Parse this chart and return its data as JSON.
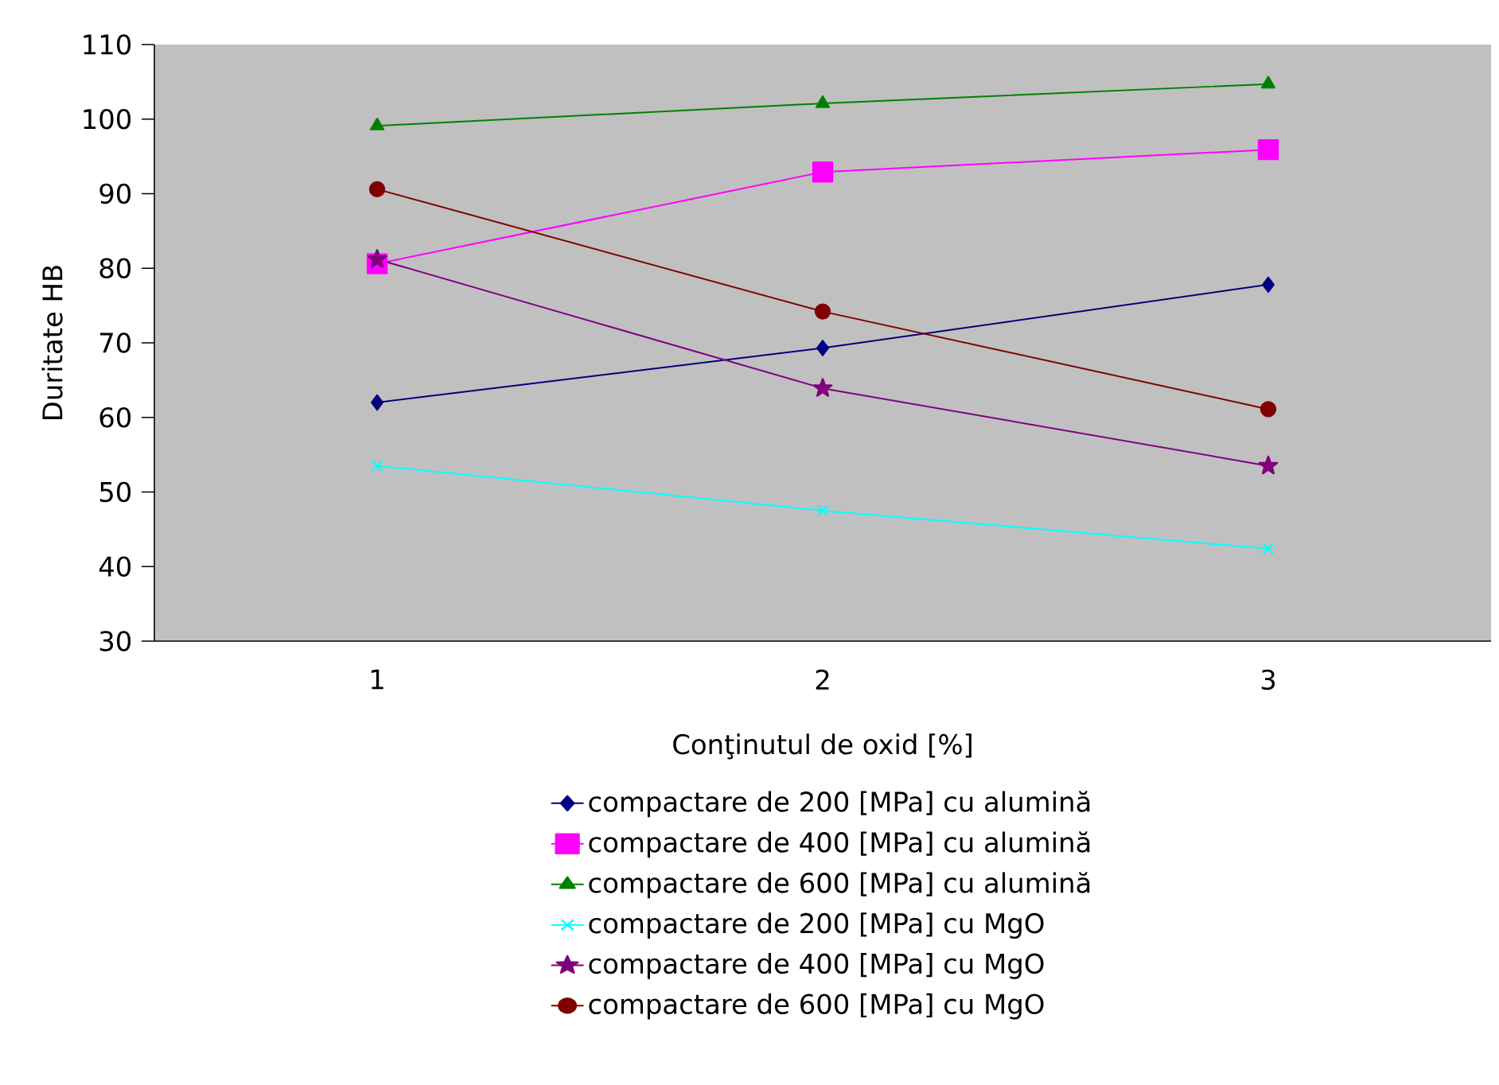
{
  "chart_data": {
    "type": "line",
    "xlabel": "Conţinutul de oxid [%]",
    "ylabel": "Duritate HB",
    "categories": [
      "1",
      "2",
      "3"
    ],
    "ylim": [
      30,
      110
    ],
    "yticks": [
      30,
      40,
      50,
      60,
      70,
      80,
      90,
      100,
      110
    ],
    "grid": false,
    "legend": "bottom",
    "series": [
      {
        "name": "compactare de 200 [MPa] cu alumină",
        "color": "#000080",
        "marker": "diamond",
        "values": [
          62,
          69.3,
          77.8
        ]
      },
      {
        "name": "compactare de 400 [MPa] cu alumină",
        "color": "#ff00ff",
        "marker": "square",
        "values": [
          80.6,
          92.9,
          95.9
        ]
      },
      {
        "name": "compactare de 600 [MPa] cu alumină",
        "color": "#008000",
        "marker": "triangle",
        "values": [
          99.1,
          102.1,
          104.7
        ]
      },
      {
        "name": "compactare de 200 [MPa] cu MgO",
        "color": "#00ffff",
        "marker": "cross",
        "values": [
          53.5,
          47.5,
          42.4
        ]
      },
      {
        "name": "compactare de 400 [MPa] cu MgO",
        "color": "#800080",
        "marker": "star",
        "values": [
          81.2,
          63.9,
          53.5
        ]
      },
      {
        "name": "compactare de 600 [MPa] cu MgO",
        "color": "#800000",
        "marker": "circle",
        "values": [
          90.6,
          74.2,
          61.1
        ]
      }
    ]
  }
}
